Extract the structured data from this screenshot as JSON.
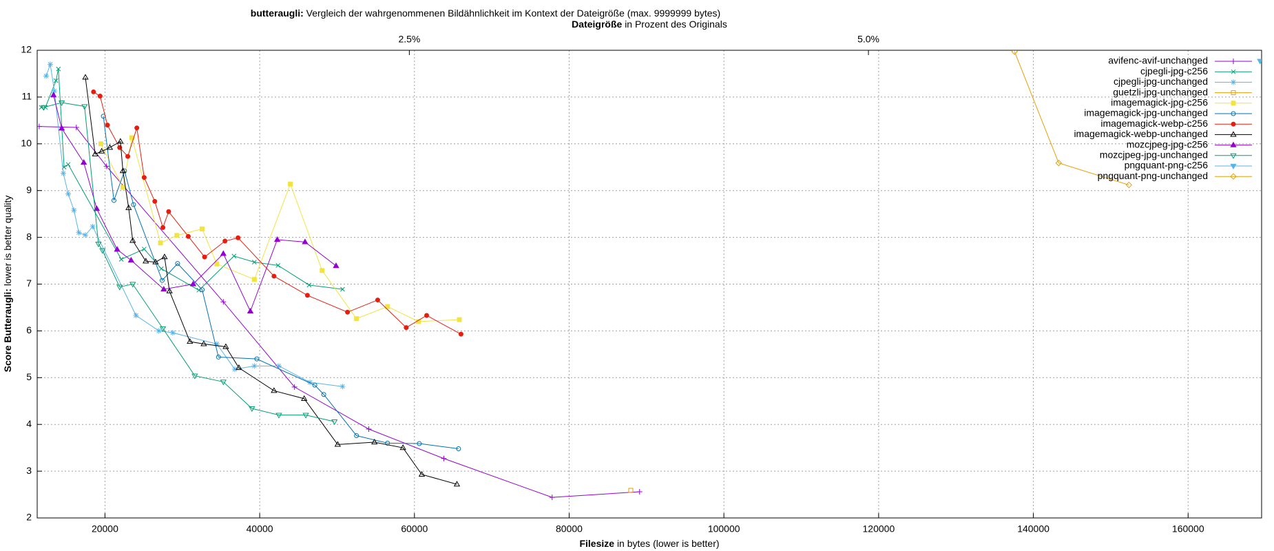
{
  "chart_data": {
    "type": "line",
    "title_bold": "butteraugli:",
    "title": "Vergleich der wahrgenommenen Bildähnlichkeit im Kontext der Dateigröße (max. 9999999 bytes)",
    "x2label_bold": "Dateigröße",
    "x2label": "in Prozent des Originals",
    "xlabel_bold": "Filesize",
    "xlabel": "in bytes (lower is better)",
    "ylabel_bold": "Score Butteraugli:",
    "ylabel": "lower is better quality",
    "xlim": [
      11240,
      169500
    ],
    "xticks": [
      20000,
      40000,
      60000,
      80000,
      100000,
      120000,
      140000,
      160000
    ],
    "x2lim": [
      0.4735,
      7.141
    ],
    "x2ticks": [
      {
        "value": 2.5,
        "label": "2.5%"
      },
      {
        "value": 5,
        "label": "5.0%"
      }
    ],
    "ylim": [
      2,
      12
    ],
    "yticks": [
      2,
      3,
      4,
      5,
      6,
      7,
      8,
      9,
      10,
      11,
      12
    ],
    "grid": true,
    "legend": "top-right",
    "series": [
      {
        "name": "avifenc-avif-unchanged",
        "color": "#9400d3",
        "marker": "plus",
        "x": [
          11500,
          16300,
          20200,
          35300,
          44500,
          54100,
          63800,
          77800,
          89100
        ],
        "values": [
          10.37,
          10.35,
          9.52,
          6.62,
          4.8,
          3.9,
          3.27,
          2.44,
          2.56
        ]
      },
      {
        "name": "cjpegli-jpg-c256",
        "color": "#009e73",
        "marker": "cross",
        "x": [
          11770,
          12300,
          13670,
          13980,
          14720,
          15250,
          22110,
          25070,
          27280,
          32140,
          36680,
          39310,
          42370,
          46390,
          50710
        ],
        "values": [
          10.78,
          10.78,
          11.35,
          11.6,
          9.5,
          9.56,
          7.53,
          7.75,
          7.33,
          6.87,
          7.6,
          7.47,
          7.4,
          6.98,
          6.89
        ]
      },
      {
        "name": "cjpegli-jpg-unchanged",
        "color": "#56b4e9",
        "marker": "star",
        "x": [
          12400,
          12930,
          13460,
          14620,
          15250,
          15990,
          16620,
          17470,
          18420,
          24010,
          26970,
          28760,
          34460,
          36780,
          39310,
          42480,
          46490,
          50710
        ],
        "values": [
          11.45,
          11.7,
          11.13,
          9.37,
          8.93,
          8.58,
          8.1,
          8.05,
          8.23,
          6.33,
          6.0,
          5.96,
          5.72,
          5.18,
          5.25,
          5.25,
          4.9,
          4.81
        ]
      },
      {
        "name": "guetzli-jpg-unchanged",
        "color": "#e69f00",
        "marker": "square-open",
        "x": [
          87970
        ],
        "values": [
          2.59
        ]
      },
      {
        "name": "imagemagick-jpg-c256",
        "color": "#f0e442",
        "marker": "square",
        "x": [
          19470,
          22320,
          23480,
          27180,
          29290,
          32560,
          34460,
          39310,
          43960,
          48070,
          52510,
          56520,
          60530,
          65800
        ],
        "values": [
          10.0,
          9.07,
          10.13,
          7.88,
          8.04,
          8.18,
          7.43,
          7.1,
          9.14,
          7.29,
          6.26,
          6.52,
          6.2,
          6.24
        ]
      },
      {
        "name": "imagemagick-jpg-unchanged",
        "color": "#0072b2",
        "marker": "circle-open",
        "x": [
          19790,
          21160,
          22530,
          23690,
          27390,
          29390,
          32560,
          34670,
          39630,
          47120,
          48280,
          52510,
          56520,
          60630,
          65700
        ],
        "values": [
          10.59,
          8.79,
          9.42,
          8.7,
          7.08,
          7.44,
          6.88,
          5.44,
          5.4,
          4.84,
          4.64,
          3.76,
          3.6,
          3.59,
          3.48
        ]
      },
      {
        "name": "imagemagick-webp-c256",
        "color": "#e51e10",
        "marker": "circle",
        "x": [
          18520,
          19370,
          20320,
          21900,
          22950,
          24120,
          25070,
          26440,
          27490,
          28230,
          30770,
          32880,
          35510,
          37200,
          41850,
          46170,
          51350,
          55250,
          58940,
          61580,
          66020
        ],
        "values": [
          11.11,
          11.02,
          10.4,
          9.92,
          9.73,
          10.34,
          9.28,
          8.77,
          8.21,
          8.55,
          8.02,
          7.58,
          7.92,
          7.99,
          7.17,
          6.76,
          6.4,
          6.66,
          6.07,
          6.33,
          5.93
        ]
      },
      {
        "name": "imagemagick-webp-unchanged",
        "color": "#000000",
        "marker": "triangle-open",
        "x": [
          17470,
          18730,
          19580,
          20630,
          22000,
          22320,
          23060,
          23590,
          25280,
          26540,
          27700,
          28340,
          30980,
          32770,
          35620,
          37310,
          41850,
          45750,
          50080,
          54830,
          58520,
          60950,
          65490
        ],
        "values": [
          11.42,
          9.78,
          9.84,
          9.92,
          10.05,
          9.42,
          8.63,
          7.93,
          7.49,
          7.47,
          7.58,
          6.85,
          5.77,
          5.72,
          5.66,
          5.21,
          4.72,
          4.55,
          3.57,
          3.62,
          3.5,
          2.93,
          2.72
        ]
      },
      {
        "name": "mozcjpeg-jpg-c256",
        "color": "#9400d3",
        "marker": "triangle",
        "x": [
          13350,
          14410,
          17260,
          18940,
          21580,
          23380,
          27600,
          31400,
          35300,
          38790,
          42270,
          45860,
          49870
        ],
        "values": [
          11.04,
          10.33,
          9.6,
          8.61,
          7.74,
          7.51,
          6.89,
          7.0,
          7.65,
          6.42,
          7.95,
          7.9,
          7.39
        ]
      },
      {
        "name": "mozcjpeg-jpg-unchanged",
        "color": "#009e73",
        "marker": "triangle-down-open",
        "x": [
          12080,
          14410,
          17360,
          19160,
          19680,
          21900,
          23590,
          27490,
          31610,
          35300,
          39000,
          42480,
          45960,
          49660
        ],
        "values": [
          10.78,
          10.88,
          10.8,
          7.86,
          7.72,
          6.94,
          7.0,
          6.05,
          5.04,
          4.91,
          4.34,
          4.2,
          4.2,
          4.06
        ]
      },
      {
        "name": "pngquant-png-c256",
        "color": "#56b4e9",
        "marker": "triangle-down",
        "x": [
          169300
        ],
        "values": [
          11.77
        ]
      },
      {
        "name": "pngquant-png-unchanged",
        "color": "#e69f00",
        "marker": "diamond-open",
        "x": [
          137570,
          143270,
          152350
        ],
        "values": [
          11.97,
          9.59,
          9.12
        ]
      }
    ]
  }
}
